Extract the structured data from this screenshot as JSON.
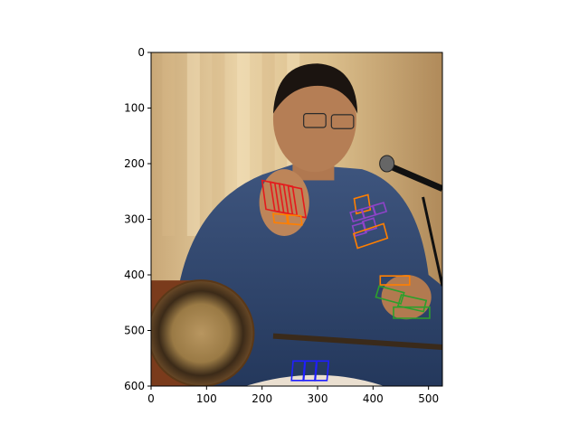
{
  "chart_data": {
    "type": "scatter",
    "title": "",
    "xlabel": "",
    "ylabel": "",
    "xlim": [
      0,
      525
    ],
    "ylim": [
      600,
      0
    ],
    "y_inverted": true,
    "grid": false,
    "x_ticks": [
      "0",
      "100",
      "200",
      "300",
      "400",
      "500"
    ],
    "y_ticks": [
      "0",
      "100",
      "200",
      "300",
      "400",
      "500",
      "600"
    ],
    "image": {
      "extent_x": [
        0,
        525
      ],
      "extent_y": [
        0,
        600
      ],
      "content": "photo of a man speaking into a microphone with a drum in the foreground"
    },
    "boxes": [
      {
        "color": "#e41a1c",
        "points": [
          [
            207,
            282
          ],
          [
            231,
            287
          ],
          [
            223,
            235
          ],
          [
            200,
            230
          ]
        ]
      },
      {
        "color": "#e41a1c",
        "points": [
          [
            223,
            285
          ],
          [
            247,
            290
          ],
          [
            239,
            238
          ],
          [
            215,
            233
          ]
        ]
      },
      {
        "color": "#e41a1c",
        "points": [
          [
            239,
            288
          ],
          [
            263,
            293
          ],
          [
            255,
            241
          ],
          [
            231,
            236
          ]
        ]
      },
      {
        "color": "#e41a1c",
        "points": [
          [
            255,
            292
          ],
          [
            279,
            297
          ],
          [
            271,
            245
          ],
          [
            247,
            240
          ]
        ]
      },
      {
        "color": "#ff7f00",
        "points": [
          [
            222,
            306
          ],
          [
            248,
            308
          ],
          [
            246,
            292
          ],
          [
            220,
            290
          ]
        ]
      },
      {
        "color": "#ff7f00",
        "points": [
          [
            246,
            308
          ],
          [
            272,
            310
          ],
          [
            270,
            294
          ],
          [
            244,
            292
          ]
        ]
      },
      {
        "color": "#ff7f00",
        "points": [
          [
            370,
            290
          ],
          [
            395,
            283
          ],
          [
            391,
            256
          ],
          [
            366,
            263
          ]
        ]
      },
      {
        "color": "#8e44c8",
        "points": [
          [
            364,
            304
          ],
          [
            385,
            298
          ],
          [
            380,
            282
          ],
          [
            359,
            288
          ]
        ]
      },
      {
        "color": "#8e44c8",
        "points": [
          [
            384,
            298
          ],
          [
            405,
            292
          ],
          [
            400,
            276
          ],
          [
            379,
            282
          ]
        ]
      },
      {
        "color": "#8e44c8",
        "points": [
          [
            404,
            292
          ],
          [
            424,
            286
          ],
          [
            419,
            270
          ],
          [
            399,
            276
          ]
        ]
      },
      {
        "color": "#8e44c8",
        "points": [
          [
            368,
            330
          ],
          [
            388,
            324
          ],
          [
            383,
            306
          ],
          [
            363,
            312
          ]
        ]
      },
      {
        "color": "#8e44c8",
        "points": [
          [
            386,
            322
          ],
          [
            406,
            316
          ],
          [
            401,
            298
          ],
          [
            381,
            304
          ]
        ]
      },
      {
        "color": "#ff7f00",
        "points": [
          [
            372,
            352
          ],
          [
            426,
            334
          ],
          [
            419,
            308
          ],
          [
            365,
            326
          ]
        ]
      },
      {
        "color": "#ff7f00",
        "points": [
          [
            413,
            418
          ],
          [
            466,
            418
          ],
          [
            466,
            402
          ],
          [
            413,
            402
          ]
        ]
      },
      {
        "color": "#2ca02c",
        "points": [
          [
            405,
            440
          ],
          [
            450,
            452
          ],
          [
            456,
            432
          ],
          [
            411,
            420
          ]
        ]
      },
      {
        "color": "#2ca02c",
        "points": [
          [
            445,
            456
          ],
          [
            491,
            466
          ],
          [
            496,
            446
          ],
          [
            451,
            436
          ]
        ]
      },
      {
        "color": "#2ca02c",
        "points": [
          [
            437,
            478
          ],
          [
            502,
            478
          ],
          [
            502,
            458
          ],
          [
            437,
            458
          ]
        ]
      },
      {
        "color": "#1f1fff",
        "points": [
          [
            253,
            590
          ],
          [
            275,
            590
          ],
          [
            278,
            555
          ],
          [
            256,
            555
          ]
        ]
      },
      {
        "color": "#1f1fff",
        "points": [
          [
            274,
            590
          ],
          [
            296,
            590
          ],
          [
            299,
            555
          ],
          [
            277,
            555
          ]
        ]
      },
      {
        "color": "#1f1fff",
        "points": [
          [
            295,
            590
          ],
          [
            317,
            590
          ],
          [
            320,
            555
          ],
          [
            298,
            555
          ]
        ]
      }
    ]
  }
}
